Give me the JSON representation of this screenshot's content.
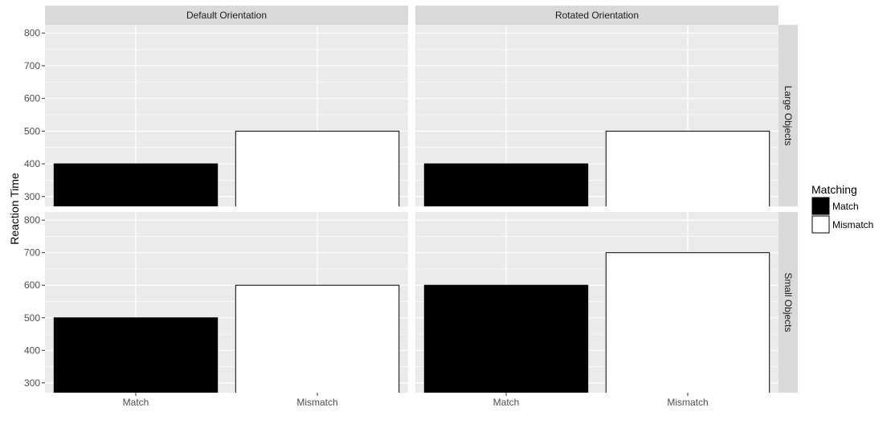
{
  "chart_data": {
    "type": "bar",
    "ylabel": "Reaction Time",
    "xlabel": "",
    "categories": [
      "Match",
      "Mismatch"
    ],
    "ylim": [
      270,
      825
    ],
    "yticks": [
      300,
      400,
      500,
      600,
      700,
      800
    ],
    "col_facets": [
      "Default Orientation",
      "Rotated Orientation"
    ],
    "row_facets": [
      "Large Objects",
      "Small Objects"
    ],
    "grid": true,
    "legend": {
      "title": "Matching",
      "position": "right",
      "entries": [
        {
          "label": "Match",
          "fill": "#000000"
        },
        {
          "label": "Mismatch",
          "fill": "#ffffff"
        }
      ]
    },
    "panels": [
      {
        "row": "Large Objects",
        "col": "Default Orientation",
        "values": [
          400,
          500
        ]
      },
      {
        "row": "Large Objects",
        "col": "Rotated Orientation",
        "values": [
          400,
          500
        ]
      },
      {
        "row": "Small Objects",
        "col": "Default Orientation",
        "values": [
          500,
          600
        ]
      },
      {
        "row": "Small Objects",
        "col": "Rotated Orientation",
        "values": [
          600,
          700
        ]
      }
    ],
    "colors": {
      "panel_bg": "#ebebeb",
      "strip_bg": "#d9d9d9",
      "grid": "#ffffff",
      "bar_stroke": "#000000"
    }
  }
}
